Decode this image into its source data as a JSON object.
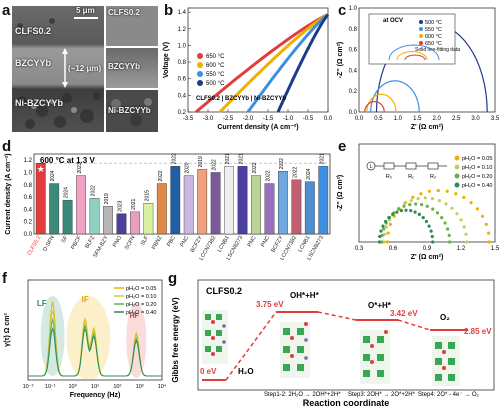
{
  "panel_labels": {
    "a": "a",
    "b": "b",
    "c": "c",
    "d": "d",
    "e": "e",
    "f": "f",
    "g": "g"
  },
  "panel_a": {
    "layers": [
      "CLFS0.2",
      "BZCYYb",
      "Ni-BZCYYb"
    ],
    "thickness": "(~12 μm)",
    "scale_bar": "5 μm",
    "right_labels": [
      "CLFS0.2",
      "BZCYYb",
      "Ni-BZCYYb"
    ]
  },
  "chart_data": [
    {
      "id": "b",
      "type": "line",
      "xlabel": "Current density (A cm⁻²)",
      "ylabel": "Voltage (V)",
      "annotation": "CLFS0.2 | BZCYYb | Ni-BZCYYb",
      "xlim": [
        -3.5,
        0
      ],
      "ylim": [
        0.2,
        1.45
      ],
      "x_ticks": [
        "-3.5",
        "-3.0",
        "-2.5",
        "-2.0",
        "-1.5",
        "-1.0",
        "-0.5",
        "0.0"
      ],
      "y_ticks": [
        "0.2",
        "0.4",
        "0.6",
        "0.8",
        "1.0",
        "1.2",
        "1.4"
      ],
      "series": [
        {
          "name": "650 °C",
          "color": "#e23c3c",
          "j_max": 3.3
        },
        {
          "name": "600 °C",
          "color": "#f0b000",
          "j_max": 2.7
        },
        {
          "name": "550 °C",
          "color": "#3f8fe0",
          "j_max": 2.0
        },
        {
          "name": "500 °C",
          "color": "#1e3a8a",
          "j_max": 1.25
        }
      ],
      "ocv": 1.37
    },
    {
      "id": "c",
      "type": "line",
      "xlabel": "Z' (Ω cm²)",
      "ylabel": "-Z'' (Ω cm²)",
      "xlim": [
        0,
        3.5
      ],
      "ylim": [
        0,
        1.0
      ],
      "x_ticks": [
        "0.0",
        "0.5",
        "1.0",
        "1.5",
        "2.0",
        "2.5",
        "3.0",
        "3.5"
      ],
      "y_ticks": [
        "0.0",
        "0.2",
        "0.4",
        "0.6",
        "0.8",
        "1.0"
      ],
      "inset_title": "at OCV",
      "inset_xlabel": "Z' (Ω cm²)",
      "inset_ylabel": "-Z'' (Ω cm²)",
      "inset_note": "Solid line-fitting data",
      "inset_x_ticks": [
        "0.0",
        "0.5",
        "1.0"
      ],
      "inset_y_ticks": [
        "0.0",
        "0.3"
      ],
      "legend": [
        "500 °C",
        "550 °C",
        "600 °C",
        "650 °C"
      ],
      "series": [
        {
          "name": "500 °C",
          "color": "#1e3a8a",
          "x0": 0.45,
          "x1": 3.3,
          "h": 0.85
        },
        {
          "name": "550 °C",
          "color": "#3f8fe0",
          "x0": 0.3,
          "x1": 1.55,
          "h": 0.3
        },
        {
          "name": "600 °C",
          "color": "#f0b000",
          "x0": 0.2,
          "x1": 0.95,
          "h": 0.17
        },
        {
          "name": "650 °C",
          "color": "#e23c3c",
          "x0": 0.15,
          "x1": 0.65,
          "h": 0.1
        }
      ]
    },
    {
      "id": "d",
      "type": "bar",
      "title": "600 °C at 1.3 V",
      "ylabel": "Current density (A cm⁻²)",
      "ylim": [
        0,
        1.3
      ],
      "y_ticks": [
        "0.0",
        "0.2",
        "0.4",
        "0.6",
        "0.8",
        "1.0",
        "1.2"
      ],
      "categories": [
        "CLFS0.2",
        "D-SFN",
        "SF",
        "PBCF",
        "BLFZ",
        "SFM-BZY",
        "PNO",
        "SCFN",
        "SLF",
        "PBNZ",
        "PBC",
        "PNC",
        "BCFZY",
        "LCCN7382",
        "LCNB1",
        "LSCN8273",
        "PNC",
        "PNC",
        "BCFZY",
        "LCCN7382",
        "LCNB1",
        "LSCN8273"
      ],
      "values": [
        1.15,
        0.82,
        0.55,
        0.95,
        0.58,
        0.45,
        0.33,
        0.36,
        0.5,
        0.82,
        1.1,
        0.95,
        1.05,
        1.0,
        1.1,
        1.1,
        0.95,
        0.82,
        1.02,
        0.88,
        0.85,
        1.1
      ],
      "years": [
        "",
        "2024",
        "2024",
        "2023",
        "2022",
        "2019",
        "2023",
        "2021",
        "2015",
        "2022",
        "2022",
        "2020",
        "2019",
        "2022",
        "2021",
        "2021",
        "2022",
        "2022",
        "2022",
        "2022",
        "2024",
        "2021"
      ],
      "colors": [
        "#e23c3c",
        "#3a8a7a",
        "#3a8a7a",
        "#f2a3c4",
        "#8fd0c2",
        "#b6b6b6",
        "#4b3fa0",
        "#e49fbf",
        "#d8f0a0",
        "#e08a4a",
        "#1f5fa6",
        "#c9b7e0",
        "#f0a07a",
        "#7a5a9a",
        "#efefef",
        "#4b3fa0",
        "#bcd39a",
        "#9a70c0",
        "#6fa8e0",
        "#c06070",
        "#4b8fd0",
        "#3f8fe0"
      ]
    },
    {
      "id": "e",
      "type": "scatter",
      "xlabel": "Z' (Ω cm²)",
      "ylabel": "-Z'' (Ω cm²)",
      "xlim": [
        0.3,
        1.5
      ],
      "ylim": [
        0,
        0.8
      ],
      "x_ticks": [
        "0.3",
        "0.6",
        "0.9",
        "1.2",
        "1.5"
      ],
      "legend": [
        "pH₂O = 0.05",
        "pH₂O = 0.10",
        "pH₂O = 0.20",
        "pH₂O = 0.40"
      ],
      "circuit_labels": [
        "L",
        "R₀",
        "R₁",
        "R₂"
      ],
      "series": [
        {
          "name": "0.05",
          "color": "#f0b000",
          "x0": 0.55,
          "x1": 1.45,
          "h": 0.42
        },
        {
          "name": "0.10",
          "color": "#bcd35a",
          "x0": 0.52,
          "x1": 1.25,
          "h": 0.36
        },
        {
          "name": "0.20",
          "color": "#6ab04a",
          "x0": 0.5,
          "x1": 1.1,
          "h": 0.31
        },
        {
          "name": "0.40",
          "color": "#2e8b57",
          "x0": 0.48,
          "x1": 0.95,
          "h": 0.26
        }
      ]
    },
    {
      "id": "f",
      "type": "line",
      "xlabel": "Frequency (Hz)",
      "ylabel": "γ(τ) Ω cm²",
      "xlim": [
        -2,
        4
      ],
      "x_ticks": [
        "10⁻²",
        "10⁻¹",
        "10⁰",
        "10¹",
        "10²",
        "10³",
        "10⁴"
      ],
      "regions": [
        "LF",
        "IF",
        "HF"
      ],
      "legend": [
        "pH₂O = 0.05",
        "pH₂O = 0.10",
        "pH₂O = 0.20",
        "pH₂O = 0.40"
      ],
      "series_colors": [
        "#f0b000",
        "#bcd35a",
        "#6ab04a",
        "#2e8b57"
      ]
    }
  ],
  "panel_g": {
    "title": "CLFS0.2",
    "ylabel": "Gibbs free energy (eV)",
    "xlabel": "Reaction coordinate",
    "energies": [
      "0 eV",
      "3.75 eV",
      "3.42 eV",
      "2.85 eV"
    ],
    "species": [
      "H₂O",
      "OH*+H*",
      "O*+H*",
      "O₂"
    ],
    "steps": [
      "Step1-2: 2H₂O → 2OH*+2H*",
      "Step3: 2OH* → 2O*+2H*",
      "Step4: 2O* - 4e⁻ → O₂"
    ]
  }
}
